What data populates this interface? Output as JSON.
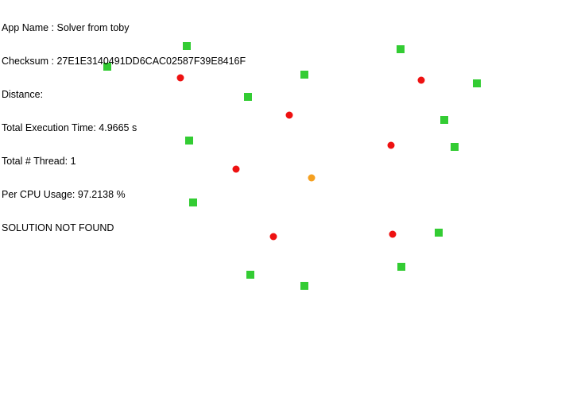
{
  "info": {
    "app_name": "App Name : Solver from toby",
    "checksum": "Checksum : 27E1E3140491DD6CAC02587F39E8416F",
    "distance": "Distance:",
    "execution_time": "Total Execution Time: 4.9665 s",
    "threads": "Total # Thread: 1",
    "cpu_usage": "Per CPU Usage: 97.2138 %",
    "status": "SOLUTION NOT FOUND"
  },
  "colors": {
    "background": "#ffffff",
    "text": "#000000",
    "target": "#33cc33",
    "obstacle": "#ee1111",
    "start": "#f5a020"
  }
}
